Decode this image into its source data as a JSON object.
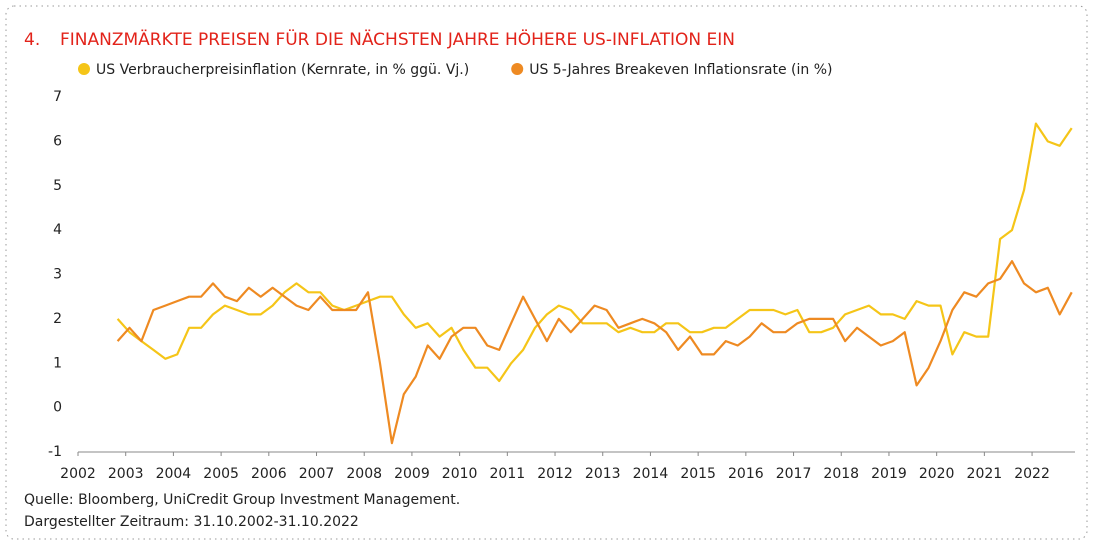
{
  "chart_data": {
    "type": "line",
    "number": "4.",
    "title": "FINANZMÄRKTE PREISEN FÜR DIE NÄCHSTEN JAHRE HÖHERE US-INFLATION EIN",
    "source": "Quelle: Bloomberg, UniCredit Group Investment Management.",
    "period": "Dargestellter Zeitraum: 31.10.2002-31.10.2022",
    "x": [
      2002.83,
      2003.08,
      2003.33,
      2003.58,
      2003.83,
      2004.08,
      2004.33,
      2004.58,
      2004.83,
      2005.08,
      2005.33,
      2005.58,
      2005.83,
      2006.08,
      2006.33,
      2006.58,
      2006.83,
      2007.08,
      2007.33,
      2007.58,
      2007.83,
      2008.08,
      2008.33,
      2008.58,
      2008.83,
      2009.08,
      2009.33,
      2009.58,
      2009.83,
      2010.08,
      2010.33,
      2010.58,
      2010.83,
      2011.08,
      2011.33,
      2011.58,
      2011.83,
      2012.08,
      2012.33,
      2012.58,
      2012.83,
      2013.08,
      2013.33,
      2013.58,
      2013.83,
      2014.08,
      2014.33,
      2014.58,
      2014.83,
      2015.08,
      2015.33,
      2015.58,
      2015.83,
      2016.08,
      2016.33,
      2016.58,
      2016.83,
      2017.08,
      2017.33,
      2017.58,
      2017.83,
      2018.08,
      2018.33,
      2018.58,
      2018.83,
      2019.08,
      2019.33,
      2019.58,
      2019.83,
      2020.08,
      2020.33,
      2020.58,
      2020.83,
      2021.08,
      2021.33,
      2021.58,
      2021.83,
      2022.08,
      2022.33,
      2022.58,
      2022.83
    ],
    "series": [
      {
        "name": "US Verbraucherpreisinflation (Kernrate, in % ggü. Vj.)",
        "color": "#f5c518",
        "values": [
          2.0,
          1.7,
          1.5,
          1.3,
          1.1,
          1.2,
          1.8,
          1.8,
          2.1,
          2.3,
          2.2,
          2.1,
          2.1,
          2.3,
          2.6,
          2.8,
          2.6,
          2.6,
          2.3,
          2.2,
          2.3,
          2.4,
          2.5,
          2.5,
          2.1,
          1.8,
          1.9,
          1.6,
          1.8,
          1.3,
          0.9,
          0.9,
          0.6,
          1.0,
          1.3,
          1.8,
          2.1,
          2.3,
          2.2,
          1.9,
          1.9,
          1.9,
          1.7,
          1.8,
          1.7,
          1.7,
          1.9,
          1.9,
          1.7,
          1.7,
          1.8,
          1.8,
          2.0,
          2.2,
          2.2,
          2.2,
          2.1,
          2.2,
          1.7,
          1.7,
          1.8,
          2.1,
          2.2,
          2.3,
          2.1,
          2.1,
          2.0,
          2.4,
          2.3,
          2.3,
          1.2,
          1.7,
          1.6,
          1.6,
          3.8,
          4.0,
          4.9,
          6.4,
          6.0,
          5.9,
          6.3
        ]
      },
      {
        "name": "US 5-Jahres Breakeven Inflationsrate (in %)",
        "color": "#ee8a22",
        "values": [
          1.5,
          1.8,
          1.5,
          2.2,
          2.3,
          2.4,
          2.5,
          2.5,
          2.8,
          2.5,
          2.4,
          2.7,
          2.5,
          2.7,
          2.5,
          2.3,
          2.2,
          2.5,
          2.2,
          2.2,
          2.2,
          2.6,
          1.0,
          -0.8,
          0.3,
          0.7,
          1.4,
          1.1,
          1.6,
          1.8,
          1.8,
          1.4,
          1.3,
          1.9,
          2.5,
          2.0,
          1.5,
          2.0,
          1.7,
          2.0,
          2.3,
          2.2,
          1.8,
          1.9,
          2.0,
          1.9,
          1.7,
          1.3,
          1.6,
          1.2,
          1.2,
          1.5,
          1.4,
          1.6,
          1.9,
          1.7,
          1.7,
          1.9,
          2.0,
          2.0,
          2.0,
          1.5,
          1.8,
          1.6,
          1.4,
          1.5,
          1.7,
          0.5,
          0.9,
          1.5,
          2.2,
          2.6,
          2.5,
          2.8,
          2.9,
          3.3,
          2.8,
          2.6,
          2.7,
          2.1,
          2.6
        ]
      }
    ],
    "xlim": [
      2002,
      2022.9
    ],
    "xticks": [
      2002,
      2003,
      2004,
      2005,
      2006,
      2007,
      2008,
      2009,
      2010,
      2011,
      2012,
      2013,
      2014,
      2015,
      2016,
      2017,
      2018,
      2019,
      2020,
      2021,
      2022
    ],
    "ylim": [
      -1,
      7
    ],
    "yticks": [
      -1,
      0,
      1,
      2,
      3,
      4,
      5,
      6,
      7
    ],
    "grid": false
  }
}
